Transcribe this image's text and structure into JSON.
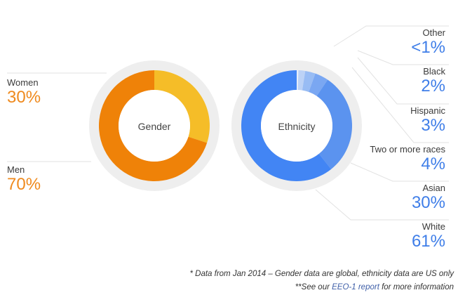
{
  "chart_data": [
    {
      "type": "pie",
      "title": "Gender",
      "categories": [
        "Women",
        "Men"
      ],
      "values": [
        30,
        70
      ],
      "value_labels": [
        "30%",
        "70%"
      ],
      "colors": [
        "#f5bd28",
        "#ef8208"
      ]
    },
    {
      "type": "pie",
      "title": "Ethnicity",
      "categories": [
        "Other",
        "Black",
        "Hispanic",
        "Two or more races",
        "Asian",
        "White"
      ],
      "values": [
        0.5,
        2,
        3,
        4,
        30,
        61
      ],
      "value_labels": [
        "<1%",
        "2%",
        "3%",
        "4%",
        "30%",
        "61%"
      ],
      "colors": [
        "#e7eef9",
        "#bcd2f6",
        "#98bcf4",
        "#7aa7f2",
        "#5b93ef",
        "#4285f4"
      ]
    }
  ],
  "footnotes": {
    "line1": "* Data from Jan 2014 – Gender data are global, ethnicity data are US only",
    "line2_prefix": "**See our ",
    "line2_link": "EEO-1 report",
    "line2_suffix": " for more information"
  },
  "colors": {
    "gender_text": "#ef8a1e",
    "ethnicity_text": "#3f7ee8",
    "ring_background": "#eeeeee",
    "leader_lines": "#e2e2e2"
  }
}
